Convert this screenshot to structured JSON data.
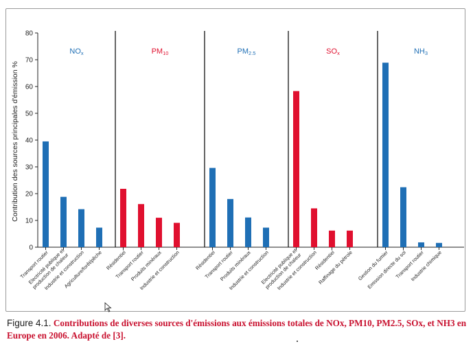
{
  "chart_data": {
    "type": "bar",
    "ylabel": "Contribution des sources principales d'émission %",
    "ylim": [
      0,
      80
    ],
    "yticks": [
      0,
      10,
      20,
      30,
      40,
      50,
      60,
      70,
      80
    ],
    "grid": false,
    "panels": [
      {
        "pollutant": "NOx",
        "label_main": "NO",
        "label_sub": "x",
        "color": "#1f6fb5",
        "categories": [
          "Transport routier",
          "Electricité publique et production de chaleur",
          "Industrie et construction",
          "Agriculture/forêt/pêche"
        ],
        "values": [
          39.5,
          18.8,
          14.2,
          7.3
        ]
      },
      {
        "pollutant": "PM10",
        "label_main": "PM",
        "label_sub": "10",
        "color": "#e0102f",
        "categories": [
          "Résidentiel",
          "Transport routier",
          "Produits minéraux",
          "Industrie et construction"
        ],
        "values": [
          21.8,
          16.1,
          11.0,
          9.1
        ]
      },
      {
        "pollutant": "PM2.5",
        "label_main": "PM",
        "label_sub": "2.5",
        "color": "#1f6fb5",
        "categories": [
          "Résidentiel",
          "Transport routier",
          "Produits minéraux",
          "Industrie et construction"
        ],
        "values": [
          29.6,
          18.0,
          11.1,
          7.3
        ]
      },
      {
        "pollutant": "SOx",
        "label_main": "SO",
        "label_sub": "x",
        "color": "#e0102f",
        "categories": [
          "Electricité publique et production de chaleur",
          "Industrie et construction",
          "Résidentiel",
          "Raffinage du pétrole"
        ],
        "values": [
          58.3,
          14.5,
          6.2,
          6.2
        ]
      },
      {
        "pollutant": "NH3",
        "label_main": "NH",
        "label_sub": "3",
        "color": "#1f6fb5",
        "categories": [
          "Gestion du fumier",
          "Emission directe du sol",
          "Transport routier",
          "Industrie chimique"
        ],
        "values": [
          68.9,
          22.4,
          1.8,
          1.6
        ]
      }
    ]
  },
  "caption": {
    "figure_label": "Figure 4.1.",
    "text": "Contributions de diverses sources d'émissions aux émissions totales de NOx, PM10, PM2.5, SOx, et NH3 en Europe en 2006. Adapté de [3]."
  }
}
